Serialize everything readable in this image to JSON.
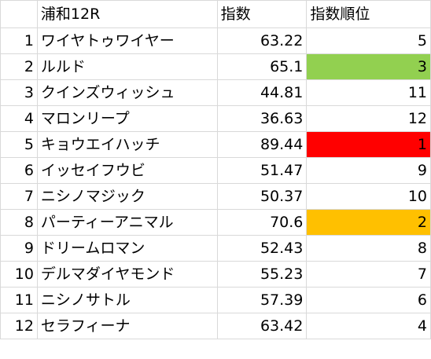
{
  "header": {
    "race": "浦和12R",
    "index": "指数",
    "rank": "指数順位"
  },
  "colors": {
    "rank1": "#ff0000",
    "rank2": "#ffc000",
    "rank3": "#92d050",
    "grid": "#d9d9d9"
  },
  "rows": [
    {
      "no": "1",
      "name": "ワイヤトゥワイヤー",
      "index": "63.22",
      "rank": "5",
      "highlight": ""
    },
    {
      "no": "2",
      "name": "ルルド",
      "index": "65.1",
      "rank": "3",
      "highlight": "#92d050"
    },
    {
      "no": "3",
      "name": "クインズウィッシュ",
      "index": "44.81",
      "rank": "11",
      "highlight": ""
    },
    {
      "no": "4",
      "name": "マロンリープ",
      "index": "36.63",
      "rank": "12",
      "highlight": ""
    },
    {
      "no": "5",
      "name": "キョウエイハッチ",
      "index": "89.44",
      "rank": "1",
      "highlight": "#ff0000"
    },
    {
      "no": "6",
      "name": "イッセイフウビ",
      "index": "51.47",
      "rank": "9",
      "highlight": ""
    },
    {
      "no": "7",
      "name": "ニシノマジック",
      "index": "50.37",
      "rank": "10",
      "highlight": ""
    },
    {
      "no": "8",
      "name": "パーティーアニマル",
      "index": "70.6",
      "rank": "2",
      "highlight": "#ffc000"
    },
    {
      "no": "9",
      "name": "ドリームロマン",
      "index": "52.43",
      "rank": "8",
      "highlight": ""
    },
    {
      "no": "10",
      "name": "デルマダイヤモンド",
      "index": "55.23",
      "rank": "7",
      "highlight": ""
    },
    {
      "no": "11",
      "name": "ニシノサトル",
      "index": "57.39",
      "rank": "6",
      "highlight": ""
    },
    {
      "no": "12",
      "name": "セラフィーナ",
      "index": "63.42",
      "rank": "4",
      "highlight": ""
    }
  ]
}
